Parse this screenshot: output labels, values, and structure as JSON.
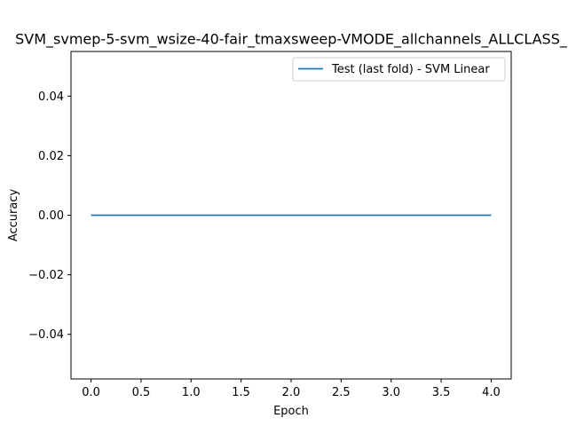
{
  "chart_data": {
    "type": "line",
    "title": "SVM_svmep-5-svm_wsize-40-fair_tmaxsweep-VMODE_allchannels_ALLCLASS_",
    "xlabel": "Epoch",
    "ylabel": "Accuracy",
    "xlim": [
      -0.2,
      4.2
    ],
    "ylim": [
      -0.055,
      0.055
    ],
    "xticks": [
      0.0,
      0.5,
      1.0,
      1.5,
      2.0,
      2.5,
      3.0,
      3.5,
      4.0
    ],
    "xtick_labels": [
      "0.0",
      "0.5",
      "1.0",
      "1.5",
      "2.0",
      "2.5",
      "3.0",
      "3.5",
      "4.0"
    ],
    "yticks": [
      -0.04,
      -0.02,
      0.0,
      0.02,
      0.04
    ],
    "ytick_labels": [
      "−0.04",
      "−0.02",
      "0.00",
      "0.02",
      "0.04"
    ],
    "grid": false,
    "legend_position": "top-right",
    "series": [
      {
        "name": "Test (last fold) - SVM Linear",
        "color": "#1f77b4",
        "x": [
          0,
          1,
          2,
          3,
          4
        ],
        "y": [
          0.0,
          0.0,
          0.0,
          0.0,
          0.0
        ]
      }
    ]
  }
}
